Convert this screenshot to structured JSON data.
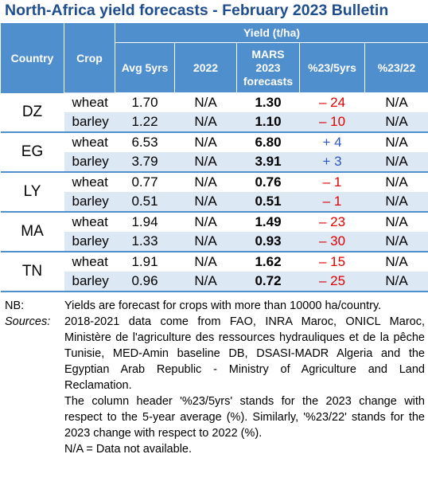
{
  "title": "North-Africa yield forecasts - February 2023 Bulletin",
  "header": {
    "country": "Country",
    "crop": "Crop",
    "yield_group": "Yield (t/ha)",
    "avg5": "Avg 5yrs",
    "y2022": "2022",
    "mars_1": "MARS",
    "mars_2": "2023",
    "mars_3": "forecasts",
    "pct5": "%23/5yrs",
    "pct22": "%23/22"
  },
  "groups": [
    {
      "country": "DZ",
      "rows": [
        {
          "crop": "wheat",
          "avg": "1.70",
          "y2022": "N/A",
          "mars": "1.30",
          "pct5": "– 24",
          "pct5_sign": "neg",
          "pct22": "N/A"
        },
        {
          "crop": "barley",
          "avg": "1.22",
          "y2022": "N/A",
          "mars": "1.10",
          "pct5": "– 10",
          "pct5_sign": "neg",
          "pct22": "N/A"
        }
      ]
    },
    {
      "country": "EG",
      "rows": [
        {
          "crop": "wheat",
          "avg": "6.53",
          "y2022": "N/A",
          "mars": "6.80",
          "pct5": "+ 4",
          "pct5_sign": "pos",
          "pct22": "N/A"
        },
        {
          "crop": "barley",
          "avg": "3.79",
          "y2022": "N/A",
          "mars": "3.91",
          "pct5": "+ 3",
          "pct5_sign": "pos",
          "pct22": "N/A"
        }
      ]
    },
    {
      "country": "LY",
      "rows": [
        {
          "crop": "wheat",
          "avg": "0.77",
          "y2022": "N/A",
          "mars": "0.76",
          "pct5": "– 1",
          "pct5_sign": "neg",
          "pct22": "N/A"
        },
        {
          "crop": "barley",
          "avg": "0.51",
          "y2022": "N/A",
          "mars": "0.51",
          "pct5": "– 1",
          "pct5_sign": "neg",
          "pct22": "N/A"
        }
      ]
    },
    {
      "country": "MA",
      "rows": [
        {
          "crop": "wheat",
          "avg": "1.94",
          "y2022": "N/A",
          "mars": "1.49",
          "pct5": "– 23",
          "pct5_sign": "neg",
          "pct22": "N/A"
        },
        {
          "crop": "barley",
          "avg": "1.33",
          "y2022": "N/A",
          "mars": "0.93",
          "pct5": "– 30",
          "pct5_sign": "neg",
          "pct22": "N/A"
        }
      ]
    },
    {
      "country": "TN",
      "rows": [
        {
          "crop": "wheat",
          "avg": "1.91",
          "y2022": "N/A",
          "mars": "1.62",
          "pct5": "– 15",
          "pct5_sign": "neg",
          "pct22": "N/A"
        },
        {
          "crop": "barley",
          "avg": "0.96",
          "y2022": "N/A",
          "mars": "0.72",
          "pct5": "– 25",
          "pct5_sign": "neg",
          "pct22": "N/A"
        }
      ]
    }
  ],
  "notes": {
    "nb_label": "NB:",
    "nb_text": "Yields are forecast for crops with more than 10000 ha/country.",
    "sources_label": "Sources:",
    "sources_text": "2018-2021 data come from FAO, INRA Maroc, ONICL Maroc, Ministère de l'agriculture des ressources hydrauliques et de la pêche Tunisie, MED-Amin baseline DB, DSASI-MADR Algeria and the Egyptian Arab Republic - Ministry of Agriculture and Land Reclamation.",
    "header_note": "The column header '%23/5yrs' stands for the 2023 change with respect to the 5-year average (%). Similarly, '%23/22' stands for the 2023 change with respect to 2022 (%).",
    "na_note": "N/A = Data not available."
  },
  "colors": {
    "title": "#1f4e8f",
    "header_bg": "#4f8fce",
    "band": "#dde8f5",
    "negative": "#e00000",
    "positive": "#2f55c6"
  }
}
